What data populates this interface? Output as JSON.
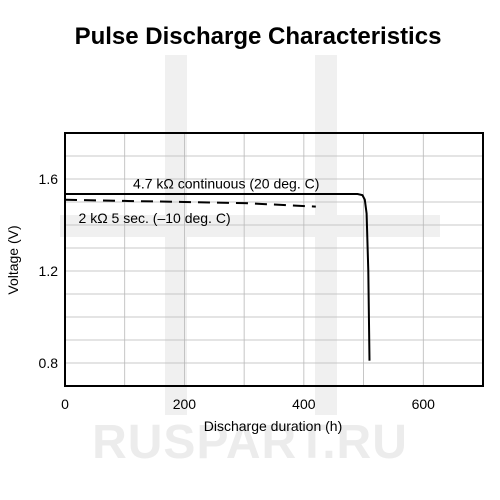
{
  "chart_data": {
    "type": "line",
    "title": "Pulse Discharge Characteristics",
    "xlabel": "Discharge duration (h)",
    "ylabel": "Voltage (V)",
    "xlim": [
      0,
      700
    ],
    "ylim": [
      0.7,
      1.8
    ],
    "x_ticks": [
      0,
      200,
      400,
      600
    ],
    "x_tick_labels": [
      "0",
      "200",
      "400",
      "600"
    ],
    "y_ticks": [
      0.8,
      1.2,
      1.6
    ],
    "y_tick_labels": [
      "0.8",
      "1.2",
      "1.6"
    ],
    "grid": true,
    "x_grid": [
      0,
      100,
      200,
      300,
      400,
      500,
      600,
      700
    ],
    "y_grid": [
      0.7,
      0.8,
      0.9,
      1.0,
      1.1,
      1.2,
      1.3,
      1.4,
      1.5,
      1.6,
      1.7,
      1.8
    ],
    "series": [
      {
        "name": "4.7 kΩ continuous (20 deg. C)",
        "style": "solid",
        "x": [
          0,
          100,
          200,
          300,
          400,
          490,
          498,
          502,
          505,
          508,
          510
        ],
        "y": [
          1.535,
          1.535,
          1.535,
          1.535,
          1.535,
          1.535,
          1.53,
          1.51,
          1.45,
          1.2,
          0.81
        ]
      },
      {
        "name": "2 kΩ 5 sec. (–10 deg. C)",
        "style": "dashed",
        "x": [
          0,
          100,
          200,
          300,
          420
        ],
        "y": [
          1.51,
          1.505,
          1.5,
          1.495,
          1.48
        ]
      }
    ],
    "annotations": [
      {
        "text": "4.7 kΩ continuous (20 deg. C)",
        "x": 270,
        "y": 1.58
      },
      {
        "text": "2 kΩ 5 sec. (–10 deg. C)",
        "x": 150,
        "y": 1.43
      }
    ]
  },
  "watermark": "RUSPART.RU"
}
